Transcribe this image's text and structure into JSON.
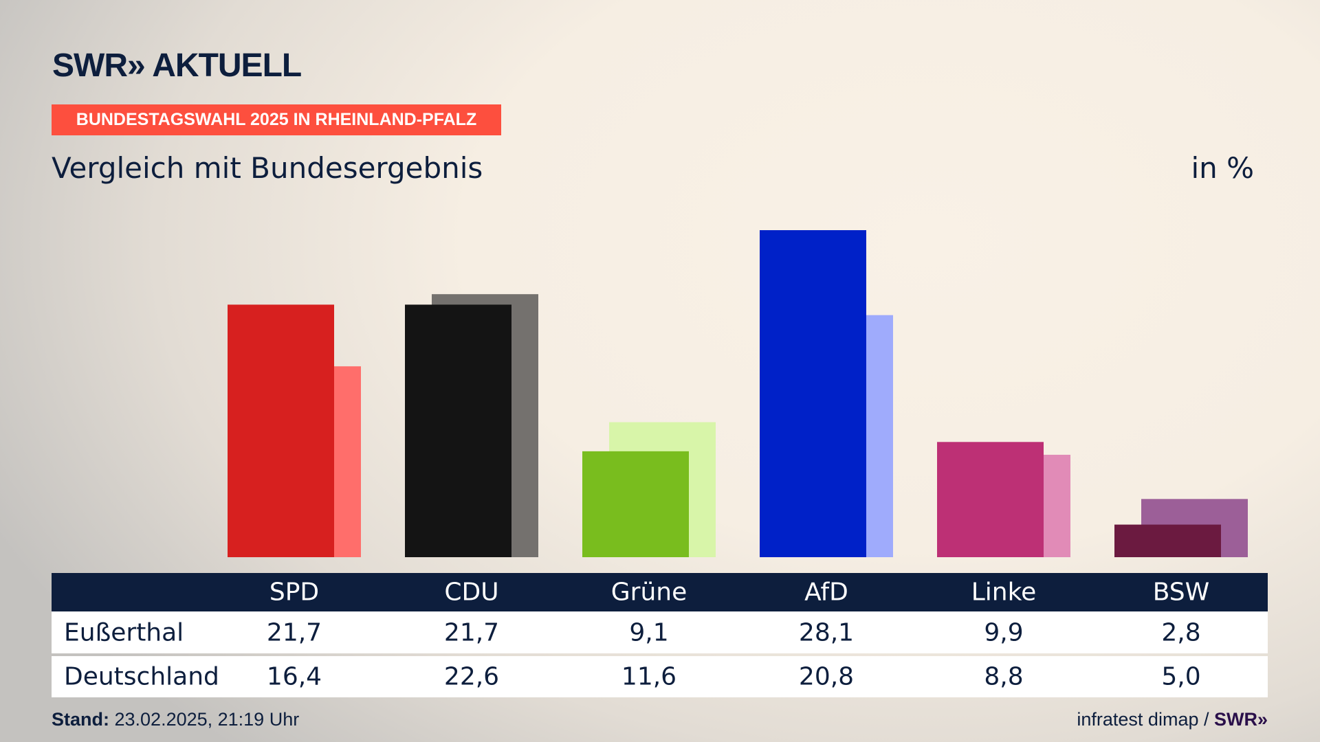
{
  "logo": "SWR» AKTUELL",
  "banner": "BUNDESTAGSWAHL 2025 IN RHEINLAND-PFALZ",
  "subtitle": "Vergleich mit Bundesergebnis",
  "unit": "in %",
  "chart_data": {
    "type": "bar",
    "title": "Vergleich mit Bundesergebnis",
    "ylabel": "in %",
    "ylim": [
      0,
      28.1
    ],
    "categories": [
      "SPD",
      "CDU",
      "Grüne",
      "AfD",
      "Linke",
      "BSW"
    ],
    "series": [
      {
        "name": "Eußerthal",
        "values": [
          21.7,
          21.7,
          9.1,
          28.1,
          9.9,
          2.8
        ],
        "display": [
          "21,7",
          "21,7",
          "9,1",
          "28,1",
          "9,9",
          "2,8"
        ],
        "colors": [
          "#d7201f",
          "#141414",
          "#79bd1e",
          "#0021c8",
          "#bd3075",
          "#6b1a40"
        ]
      },
      {
        "name": "Deutschland",
        "values": [
          16.4,
          22.6,
          11.6,
          20.8,
          8.8,
          5.0
        ],
        "display": [
          "16,4",
          "22,6",
          "11,6",
          "20,8",
          "8,8",
          "5,0"
        ],
        "colors": [
          "#ff6e6b",
          "#74716e",
          "#d8f5a9",
          "#9fabfc",
          "#e18bb7",
          "#9c5f98"
        ]
      }
    ]
  },
  "footer": {
    "stand_label": "Stand:",
    "stand_value": " 23.02.2025, 21:19 Uhr",
    "source": "infratest dimap / ",
    "source_logo": "SWR»"
  }
}
